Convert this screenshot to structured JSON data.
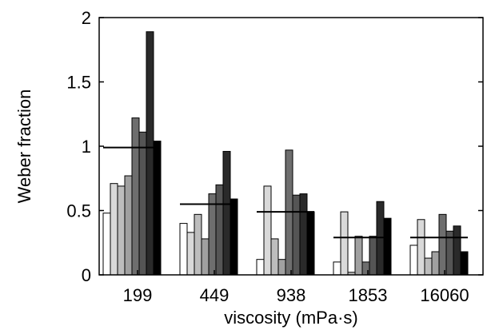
{
  "chart_data": {
    "type": "bar",
    "xlabel": "viscosity (mPa·s)",
    "ylabel": "Weber fraction",
    "ylim": [
      0,
      2
    ],
    "yticks": [
      "0",
      "0.5",
      "1",
      "1.5",
      "2"
    ],
    "categories": [
      "199",
      "449",
      "938",
      "1853",
      "16060"
    ],
    "series_colors": [
      "#ffffff",
      "#d9d9d9",
      "#bdbdbd",
      "#a0a0a0",
      "#6e6e6e",
      "#555555",
      "#2a2a2a",
      "#000000"
    ],
    "values": [
      [
        0.48,
        0.71,
        0.69,
        0.77,
        1.22,
        1.11,
        1.89,
        1.04
      ],
      [
        0.4,
        0.33,
        0.47,
        0.28,
        0.63,
        0.7,
        0.96,
        0.59
      ],
      [
        0.12,
        0.69,
        0.28,
        0.12,
        0.97,
        0.62,
        0.63,
        0.49
      ],
      [
        0.1,
        0.49,
        0.02,
        0.3,
        0.1,
        0.3,
        0.57,
        0.44
      ],
      [
        0.23,
        0.43,
        0.13,
        0.18,
        0.47,
        0.34,
        0.38,
        0.18
      ]
    ],
    "means": [
      0.99,
      0.55,
      0.49,
      0.29,
      0.29
    ],
    "grid": false
  }
}
